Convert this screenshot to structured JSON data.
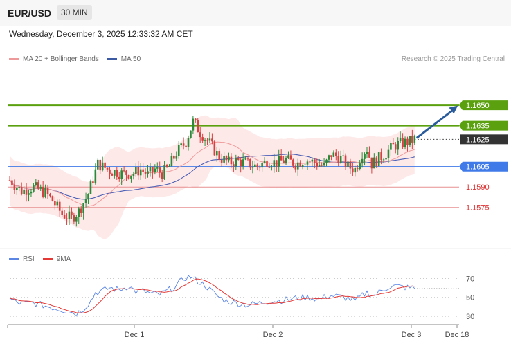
{
  "header": {
    "symbol": "EUR/USD",
    "timeframe": "30 MIN"
  },
  "date_line": "Wednesday, December 3, 2025 12:33:32 AM CET",
  "legend": {
    "ma20": "MA 20 + Bollinger Bands",
    "ma50": "MA 50",
    "credit": "Research © 2025 Trading Central"
  },
  "rsi_legend": {
    "rsi": "RSI",
    "ma": "9MA"
  },
  "colors": {
    "bull": "#2a8a3a",
    "bear": "#d64040",
    "ma20": "#ef9a9a",
    "ma50": "#4a5fb5",
    "band": "#fde2e2",
    "green_level": "#5ba10f",
    "blue_level": "#3f7ae8",
    "red_level": "#e78f8f",
    "current": "#333333",
    "arrow": "#2a5b9a",
    "rsi": "#5b86e5",
    "rsi_ma": "#e53935"
  },
  "chart_data": [
    {
      "type": "candlestick",
      "y_ticks": [],
      "ylim": [
        1.1553,
        1.1676
      ],
      "x_labels": [
        "Dec 1",
        "Dec 2",
        "Dec 3",
        "Dec 18"
      ],
      "levels": [
        {
          "value": 1.165,
          "label": "1.1650",
          "kind": "resistance"
        },
        {
          "value": 1.1635,
          "label": "1.1635",
          "kind": "resistance"
        },
        {
          "value": 1.1625,
          "label": "1.1625",
          "kind": "current"
        },
        {
          "value": 1.1605,
          "label": "1.1605",
          "kind": "pivot"
        },
        {
          "value": 1.159,
          "label": "1.1590",
          "kind": "support"
        },
        {
          "value": 1.1575,
          "label": "1.1575",
          "kind": "support"
        }
      ],
      "price_anchors": [
        [
          0,
          1.1595
        ],
        [
          5,
          1.1587
        ],
        [
          10,
          1.159
        ],
        [
          15,
          1.1586
        ],
        [
          18,
          1.158
        ],
        [
          22,
          1.157
        ],
        [
          26,
          1.1567
        ],
        [
          29,
          1.1572
        ],
        [
          33,
          1.1585
        ],
        [
          37,
          1.1607
        ],
        [
          42,
          1.1602
        ],
        [
          47,
          1.16
        ],
        [
          52,
          1.16
        ],
        [
          55,
          1.1603
        ],
        [
          58,
          1.1599
        ],
        [
          61,
          1.1603
        ],
        [
          64,
          1.16
        ],
        [
          67,
          1.1605
        ],
        [
          70,
          1.1615
        ],
        [
          74,
          1.1623
        ],
        [
          77,
          1.1638
        ],
        [
          80,
          1.163
        ],
        [
          84,
          1.1622
        ],
        [
          88,
          1.1612
        ],
        [
          92,
          1.1608
        ],
        [
          96,
          1.1609
        ],
        [
          100,
          1.1607
        ],
        [
          104,
          1.1605
        ],
        [
          108,
          1.1609
        ],
        [
          112,
          1.1608
        ],
        [
          116,
          1.161
        ],
        [
          120,
          1.1607
        ],
        [
          124,
          1.161
        ],
        [
          128,
          1.1608
        ],
        [
          132,
          1.1605
        ],
        [
          135,
          1.1614
        ],
        [
          139,
          1.1611
        ],
        [
          142,
          1.1605
        ],
        [
          145,
          1.1603
        ],
        [
          148,
          1.1615
        ],
        [
          150,
          1.1618
        ],
        [
          152,
          1.1607
        ],
        [
          155,
          1.1611
        ],
        [
          158,
          1.1615
        ],
        [
          161,
          1.162
        ],
        [
          164,
          1.1622
        ],
        [
          167,
          1.1623
        ],
        [
          170,
          1.1625
        ]
      ],
      "forecast_arrow": {
        "from": 1.1625,
        "to": 1.165
      }
    },
    {
      "type": "line",
      "name": "RSI",
      "y_ticks": [
        30,
        50,
        70
      ],
      "ylim": [
        22,
        82
      ],
      "rsi_anchors": [
        [
          0,
          48
        ],
        [
          5,
          43
        ],
        [
          10,
          44
        ],
        [
          15,
          41
        ],
        [
          20,
          38
        ],
        [
          25,
          35
        ],
        [
          28,
          33
        ],
        [
          31,
          38
        ],
        [
          34,
          46
        ],
        [
          36,
          55
        ],
        [
          39,
          57
        ],
        [
          42,
          60
        ],
        [
          46,
          58
        ],
        [
          50,
          62
        ],
        [
          53,
          56
        ],
        [
          56,
          57
        ],
        [
          59,
          54
        ],
        [
          63,
          53
        ],
        [
          67,
          58
        ],
        [
          70,
          62
        ],
        [
          73,
          70
        ],
        [
          76,
          72
        ],
        [
          79,
          67
        ],
        [
          82,
          63
        ],
        [
          85,
          56
        ],
        [
          88,
          50
        ],
        [
          91,
          46
        ],
        [
          95,
          44
        ],
        [
          100,
          42
        ],
        [
          105,
          44
        ],
        [
          110,
          46
        ],
        [
          115,
          47
        ],
        [
          120,
          49
        ],
        [
          125,
          50
        ],
        [
          130,
          48
        ],
        [
          134,
          52
        ],
        [
          138,
          51
        ],
        [
          142,
          49
        ],
        [
          145,
          46
        ],
        [
          148,
          52
        ],
        [
          150,
          55
        ],
        [
          153,
          52
        ],
        [
          156,
          57
        ],
        [
          159,
          61
        ],
        [
          162,
          62
        ],
        [
          165,
          61
        ],
        [
          168,
          60
        ],
        [
          170,
          60
        ]
      ]
    }
  ]
}
